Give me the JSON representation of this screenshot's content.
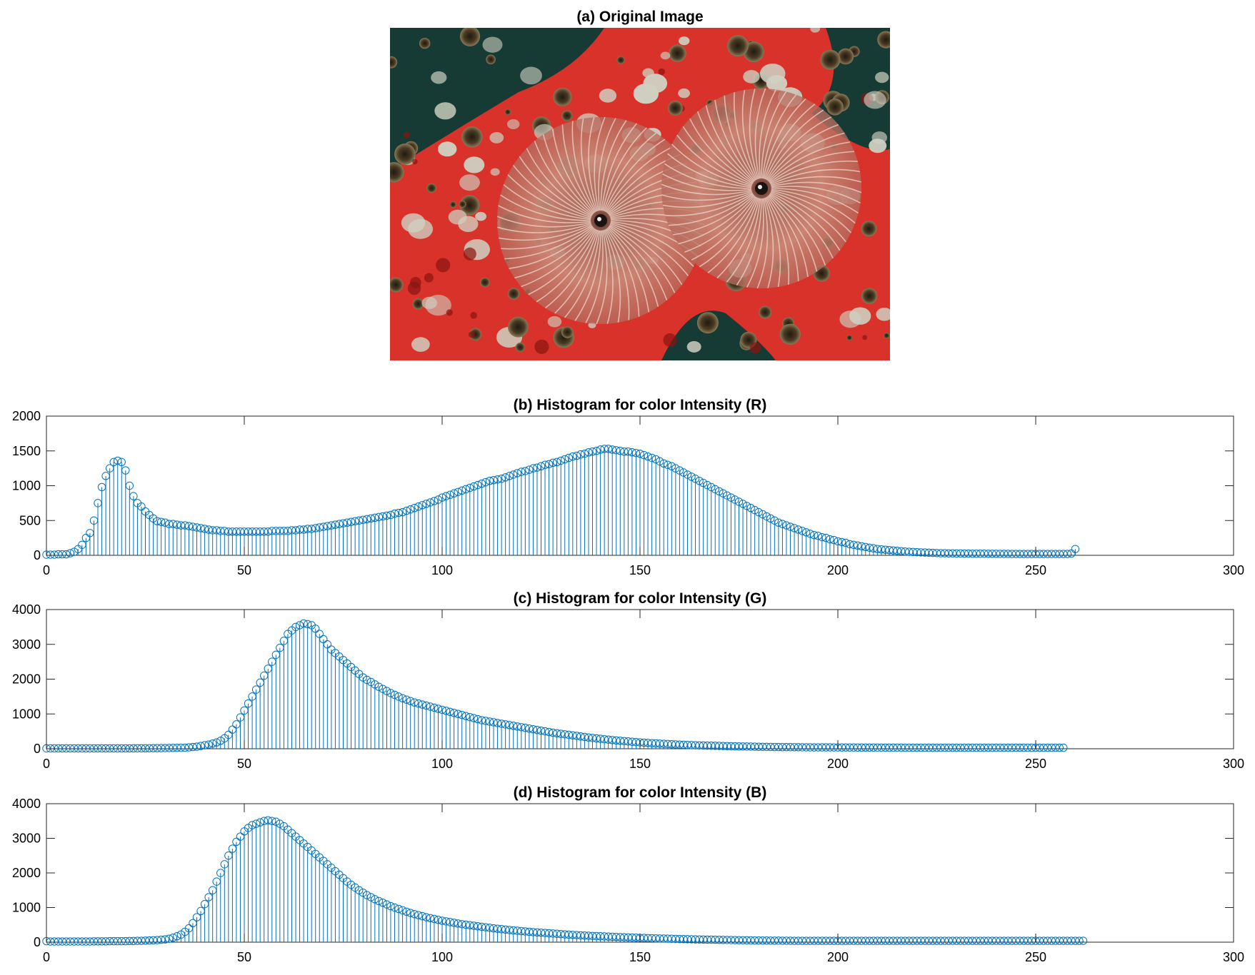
{
  "image_panel": {
    "title": "(a) Original Image",
    "colors": {
      "background": "#d8322a",
      "dark_water": "#163a34",
      "worm_fan": "#c47c66",
      "sponge_light": "#cfd0c2",
      "polyp_dark": "#3a2a1c"
    }
  },
  "chart_data": [
    {
      "type": "stem",
      "title": "(b) Histogram for color Intensity (R)",
      "xlim": [
        0,
        300
      ],
      "ylim": [
        0,
        2000
      ],
      "xticks": [
        0,
        50,
        100,
        150,
        200,
        250,
        300
      ],
      "yticks": [
        0,
        500,
        1000,
        1500,
        2000
      ],
      "marker": "circle",
      "color": "#0072bd",
      "x_start": 0,
      "x_step": 1,
      "values": [
        10,
        10,
        10,
        15,
        15,
        15,
        30,
        50,
        90,
        150,
        250,
        320,
        500,
        750,
        980,
        1140,
        1250,
        1340,
        1360,
        1340,
        1220,
        1000,
        850,
        750,
        700,
        630,
        580,
        530,
        490,
        480,
        470,
        450,
        450,
        440,
        430,
        430,
        420,
        410,
        400,
        390,
        380,
        370,
        360,
        360,
        350,
        350,
        340,
        340,
        340,
        340,
        340,
        340,
        340,
        340,
        340,
        340,
        340,
        350,
        350,
        350,
        350,
        350,
        360,
        360,
        370,
        370,
        380,
        380,
        390,
        400,
        410,
        420,
        430,
        440,
        450,
        460,
        470,
        480,
        490,
        500,
        510,
        520,
        530,
        540,
        550,
        560,
        570,
        580,
        600,
        610,
        620,
        640,
        660,
        680,
        700,
        720,
        740,
        760,
        780,
        800,
        830,
        850,
        870,
        890,
        910,
        930,
        950,
        970,
        990,
        1010,
        1030,
        1050,
        1070,
        1080,
        1090,
        1100,
        1120,
        1140,
        1160,
        1180,
        1200,
        1210,
        1230,
        1250,
        1260,
        1280,
        1300,
        1310,
        1330,
        1340,
        1360,
        1380,
        1400,
        1420,
        1430,
        1450,
        1460,
        1480,
        1490,
        1500,
        1520,
        1530,
        1530,
        1520,
        1510,
        1500,
        1490,
        1490,
        1480,
        1470,
        1460,
        1440,
        1420,
        1400,
        1380,
        1350,
        1320,
        1300,
        1280,
        1250,
        1220,
        1190,
        1160,
        1130,
        1100,
        1070,
        1040,
        1010,
        980,
        950,
        920,
        890,
        860,
        830,
        800,
        770,
        740,
        710,
        680,
        650,
        620,
        590,
        560,
        530,
        500,
        470,
        450,
        430,
        410,
        390,
        370,
        350,
        330,
        310,
        290,
        280,
        260,
        250,
        230,
        220,
        200,
        190,
        180,
        160,
        150,
        140,
        130,
        120,
        110,
        100,
        90,
        85,
        80,
        75,
        70,
        65,
        60,
        55,
        50,
        48,
        45,
        42,
        40,
        38,
        35,
        33,
        30,
        30,
        28,
        28,
        26,
        26,
        25,
        25,
        24,
        24,
        23,
        23,
        22,
        22,
        22,
        21,
        21,
        21,
        20,
        20,
        20,
        20,
        20,
        20,
        20,
        20,
        20,
        20,
        20,
        20,
        20,
        20,
        20,
        25,
        90
      ]
    },
    {
      "type": "stem",
      "title": "(c) Histogram for color Intensity (G)",
      "xlim": [
        0,
        300
      ],
      "ylim": [
        0,
        4000
      ],
      "xticks": [
        0,
        50,
        100,
        150,
        200,
        250,
        300
      ],
      "yticks": [
        0,
        1000,
        2000,
        3000,
        4000
      ],
      "marker": "circle",
      "color": "#0072bd",
      "x_start": 0,
      "x_step": 1,
      "values": [
        10,
        10,
        10,
        10,
        10,
        10,
        10,
        10,
        10,
        10,
        10,
        10,
        10,
        10,
        10,
        10,
        10,
        10,
        10,
        12,
        12,
        12,
        12,
        13,
        13,
        14,
        15,
        16,
        17,
        18,
        20,
        22,
        24,
        26,
        28,
        30,
        40,
        50,
        60,
        80,
        100,
        120,
        150,
        180,
        230,
        300,
        400,
        550,
        700,
        900,
        1100,
        1300,
        1500,
        1700,
        1900,
        2100,
        2300,
        2500,
        2700,
        2900,
        3100,
        3300,
        3400,
        3500,
        3550,
        3600,
        3580,
        3550,
        3450,
        3300,
        3150,
        3000,
        2850,
        2750,
        2650,
        2550,
        2450,
        2350,
        2250,
        2150,
        2050,
        1980,
        1920,
        1850,
        1780,
        1720,
        1660,
        1600,
        1550,
        1500,
        1450,
        1410,
        1370,
        1330,
        1300,
        1270,
        1240,
        1210,
        1180,
        1150,
        1120,
        1090,
        1060,
        1030,
        1000,
        970,
        940,
        910,
        880,
        850,
        820,
        800,
        780,
        760,
        740,
        720,
        700,
        680,
        660,
        640,
        620,
        600,
        580,
        560,
        540,
        520,
        500,
        480,
        460,
        445,
        430,
        415,
        400,
        385,
        370,
        355,
        340,
        325,
        310,
        298,
        286,
        274,
        262,
        250,
        240,
        230,
        220,
        210,
        200,
        192,
        184,
        176,
        168,
        160,
        154,
        148,
        142,
        136,
        130,
        125,
        120,
        115,
        110,
        105,
        100,
        97,
        94,
        91,
        88,
        85,
        82,
        79,
        76,
        73,
        70,
        68,
        66,
        64,
        62,
        60,
        58,
        56,
        54,
        52,
        50,
        49,
        48,
        47,
        46,
        45,
        44,
        43,
        42,
        41,
        40,
        40,
        40,
        39,
        39,
        38,
        38,
        37,
        37,
        36,
        36,
        35,
        35,
        35,
        34,
        34,
        33,
        33,
        32,
        32,
        32,
        31,
        31,
        30,
        30,
        30,
        30,
        30,
        30,
        30,
        30,
        30,
        30,
        30,
        30,
        30,
        30,
        30,
        30,
        30,
        30,
        30,
        30,
        30,
        30,
        30,
        30,
        30,
        30,
        30,
        30,
        30,
        30,
        30,
        30,
        30,
        30,
        30,
        30,
        30,
        30,
        30,
        30,
        30
      ]
    },
    {
      "type": "stem",
      "title": "(d) Histogram for color Intensity (B)",
      "xlim": [
        0,
        300
      ],
      "ylim": [
        0,
        4000
      ],
      "xticks": [
        0,
        50,
        100,
        150,
        200,
        250,
        300
      ],
      "yticks": [
        0,
        1000,
        2000,
        3000,
        4000
      ],
      "marker": "circle",
      "color": "#0072bd",
      "x_start": 0,
      "x_step": 1,
      "values": [
        30,
        20,
        20,
        20,
        20,
        20,
        20,
        20,
        20,
        20,
        20,
        20,
        25,
        25,
        25,
        25,
        30,
        30,
        30,
        30,
        30,
        35,
        35,
        40,
        40,
        45,
        50,
        55,
        60,
        70,
        80,
        100,
        130,
        170,
        220,
        300,
        400,
        550,
        720,
        900,
        1100,
        1300,
        1500,
        1750,
        2000,
        2250,
        2500,
        2700,
        2900,
        3050,
        3200,
        3300,
        3380,
        3420,
        3460,
        3500,
        3520,
        3500,
        3480,
        3420,
        3350,
        3250,
        3150,
        3050,
        2950,
        2850,
        2750,
        2650,
        2550,
        2450,
        2350,
        2250,
        2150,
        2050,
        1950,
        1850,
        1750,
        1660,
        1580,
        1500,
        1430,
        1360,
        1300,
        1240,
        1190,
        1140,
        1090,
        1040,
        1000,
        960,
        920,
        880,
        845,
        810,
        780,
        750,
        720,
        695,
        670,
        645,
        620,
        600,
        580,
        560,
        540,
        520,
        505,
        490,
        475,
        460,
        445,
        430,
        415,
        400,
        388,
        376,
        364,
        352,
        340,
        330,
        320,
        310,
        300,
        290,
        282,
        274,
        266,
        258,
        250,
        242,
        234,
        226,
        218,
        210,
        204,
        198,
        192,
        186,
        180,
        175,
        170,
        165,
        160,
        155,
        150,
        146,
        142,
        138,
        134,
        130,
        126,
        122,
        118,
        114,
        110,
        107,
        104,
        101,
        98,
        95,
        92,
        89,
        86,
        83,
        80,
        78,
        76,
        74,
        72,
        70,
        68,
        66,
        64,
        62,
        60,
        58,
        56,
        54,
        52,
        50,
        49,
        48,
        47,
        46,
        45,
        44,
        43,
        42,
        41,
        40,
        40,
        40,
        40,
        40,
        40,
        40,
        40,
        40,
        40,
        40,
        40,
        40,
        40,
        40,
        40,
        40,
        40,
        40,
        40,
        40,
        40,
        40,
        40,
        40,
        40,
        40,
        40,
        40,
        40,
        40,
        40,
        40,
        40,
        40,
        40,
        40,
        40,
        40,
        40,
        40,
        40,
        40,
        40,
        40,
        40,
        40,
        40,
        40,
        40,
        40,
        40,
        40,
        40,
        40,
        40,
        40,
        40,
        40,
        40,
        40,
        40,
        40,
        40,
        40,
        40,
        40,
        40,
        40,
        40,
        40,
        40,
        40,
        40
      ]
    }
  ]
}
